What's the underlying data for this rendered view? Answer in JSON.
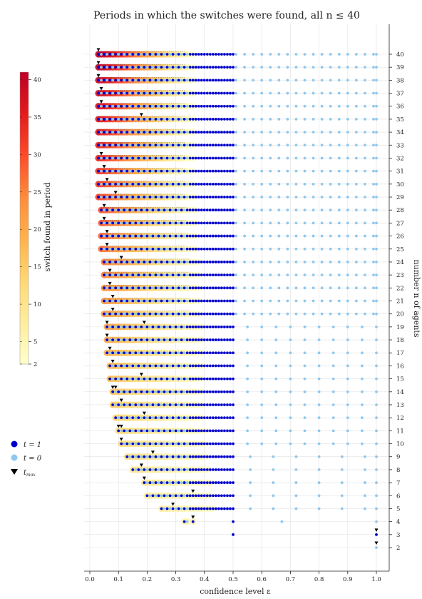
{
  "chart_data": {
    "type": "scatter",
    "title": "Periods in which the switches were found, all n ≤ 40",
    "xlabel": "confidence level ε",
    "ylabel": "number n of agents",
    "xlim": [
      0.0,
      1.0
    ],
    "ylim": [
      2,
      40
    ],
    "xticks": [
      "0.0",
      "0.1",
      "0.2",
      "0.3",
      "0.4",
      "0.5",
      "0.6",
      "0.7",
      "0.8",
      "0.9",
      "1.0"
    ],
    "yticks": [
      "2",
      "3",
      "4",
      "5",
      "6",
      "7",
      "8",
      "9",
      "10",
      "11",
      "12",
      "13",
      "14",
      "15",
      "16",
      "17",
      "18",
      "19",
      "20",
      "21",
      "22",
      "23",
      "24",
      "25",
      "26",
      "27",
      "28",
      "29",
      "30",
      "31",
      "32",
      "33",
      "34",
      "35",
      "36",
      "37",
      "38",
      "39",
      "40"
    ],
    "grid": true,
    "colorbar": {
      "label": "switch found in period",
      "range": [
        2,
        41
      ],
      "ticks": [
        "2",
        "5",
        "10",
        "15",
        "20",
        "25",
        "30",
        "35",
        "40"
      ],
      "colors": [
        "#ffffcc",
        "#ffeda0",
        "#fed976",
        "#feb24c",
        "#fd8d3c",
        "#fc4e2a",
        "#e31a1c",
        "#bd0026"
      ]
    },
    "legend": {
      "position": "left",
      "entries": [
        {
          "label": "t = 1",
          "marker": "circle",
          "color": "#0000cc"
        },
        {
          "label": "t = 0",
          "marker": "circle",
          "color": "#8ec8f0"
        },
        {
          "label": "t",
          "subscript": "max",
          "marker": "triangle-down",
          "color": "#000000"
        }
      ]
    },
    "rows": [
      {
        "n": 40,
        "eps_min": 0.03,
        "eps_t1_end": 0.49,
        "tmax": [
          0.03
        ]
      },
      {
        "n": 39,
        "eps_min": 0.03,
        "eps_t1_end": 0.49,
        "tmax": [
          0.03
        ]
      },
      {
        "n": 38,
        "eps_min": 0.03,
        "eps_t1_end": 0.49,
        "tmax": [
          0.03
        ]
      },
      {
        "n": 37,
        "eps_min": 0.03,
        "eps_t1_end": 0.49,
        "tmax": [
          0.04
        ]
      },
      {
        "n": 36,
        "eps_min": 0.03,
        "eps_t1_end": 0.49,
        "tmax": [
          0.04
        ]
      },
      {
        "n": 35,
        "eps_min": 0.03,
        "eps_t1_end": 0.49,
        "tmax": [
          0.18
        ]
      },
      {
        "n": 34,
        "eps_min": 0.03,
        "eps_t1_end": 0.49,
        "tmax": []
      },
      {
        "n": 33,
        "eps_min": 0.03,
        "eps_t1_end": 0.49,
        "tmax": []
      },
      {
        "n": 32,
        "eps_min": 0.03,
        "eps_t1_end": 0.49,
        "tmax": [
          0.04
        ]
      },
      {
        "n": 31,
        "eps_min": 0.03,
        "eps_t1_end": 0.49,
        "tmax": [
          0.05
        ]
      },
      {
        "n": 30,
        "eps_min": 0.03,
        "eps_t1_end": 0.49,
        "tmax": [
          0.06
        ]
      },
      {
        "n": 29,
        "eps_min": 0.03,
        "eps_t1_end": 0.49,
        "tmax": [
          0.09
        ]
      },
      {
        "n": 28,
        "eps_min": 0.04,
        "eps_t1_end": 0.49,
        "tmax": [
          0.05
        ]
      },
      {
        "n": 27,
        "eps_min": 0.04,
        "eps_t1_end": 0.49,
        "tmax": [
          0.05
        ]
      },
      {
        "n": 26,
        "eps_min": 0.04,
        "eps_t1_end": 0.49,
        "tmax": [
          0.06
        ]
      },
      {
        "n": 25,
        "eps_min": 0.04,
        "eps_t1_end": 0.49,
        "tmax": [
          0.06
        ]
      },
      {
        "n": 24,
        "eps_min": 0.05,
        "eps_t1_end": 0.49,
        "tmax": [
          0.11
        ]
      },
      {
        "n": 23,
        "eps_min": 0.05,
        "eps_t1_end": 0.49,
        "tmax": [
          0.07
        ]
      },
      {
        "n": 22,
        "eps_min": 0.05,
        "eps_t1_end": 0.49,
        "tmax": [
          0.07
        ]
      },
      {
        "n": 21,
        "eps_min": 0.05,
        "eps_t1_end": 0.49,
        "tmax": [
          0.08
        ]
      },
      {
        "n": 20,
        "eps_min": 0.05,
        "eps_t1_end": 0.49,
        "tmax": [
          0.08
        ]
      },
      {
        "n": 19,
        "eps_min": 0.06,
        "eps_t1_end": 0.49,
        "tmax": [
          0.06,
          0.19
        ]
      },
      {
        "n": 18,
        "eps_min": 0.06,
        "eps_t1_end": 0.49,
        "tmax": [
          0.06
        ]
      },
      {
        "n": 17,
        "eps_min": 0.06,
        "eps_t1_end": 0.49,
        "tmax": [
          0.07
        ]
      },
      {
        "n": 16,
        "eps_min": 0.07,
        "eps_t1_end": 0.49,
        "tmax": [
          0.08
        ]
      },
      {
        "n": 15,
        "eps_min": 0.07,
        "eps_t1_end": 0.49,
        "tmax": [
          0.18
        ]
      },
      {
        "n": 14,
        "eps_min": 0.08,
        "eps_t1_end": 0.49,
        "tmax": [
          0.08,
          0.09
        ]
      },
      {
        "n": 13,
        "eps_min": 0.08,
        "eps_t1_end": 0.49,
        "tmax": [
          0.11
        ]
      },
      {
        "n": 12,
        "eps_min": 0.09,
        "eps_t1_end": 0.49,
        "tmax": [
          0.19
        ]
      },
      {
        "n": 11,
        "eps_min": 0.1,
        "eps_t1_end": 0.49,
        "tmax": [
          0.1,
          0.11
        ]
      },
      {
        "n": 10,
        "eps_min": 0.11,
        "eps_t1_end": 0.49,
        "tmax": [
          0.11
        ]
      },
      {
        "n": 9,
        "eps_min": 0.13,
        "eps_t1_end": 0.49,
        "tmax": [
          0.22
        ]
      },
      {
        "n": 8,
        "eps_min": 0.15,
        "eps_t1_end": 0.49,
        "tmax": [
          0.18
        ]
      },
      {
        "n": 7,
        "eps_min": 0.19,
        "eps_t1_end": 0.49,
        "tmax": [
          0.19
        ]
      },
      {
        "n": 6,
        "eps_min": 0.2,
        "eps_t1_end": 0.49,
        "tmax": [
          0.36
        ]
      },
      {
        "n": 5,
        "eps_min": 0.25,
        "eps_t1_end": 0.49,
        "tmax": [
          0.29
        ]
      },
      {
        "n": 4,
        "eps_min": 0.33,
        "eps_t1_end": 0.49,
        "tmax": [
          0.36
        ]
      },
      {
        "n": 3,
        "eps_min": 0.5,
        "eps_t1_end": 1.0,
        "tmax": [
          1.0
        ]
      },
      {
        "n": 2,
        "eps_min": 1.0,
        "eps_t1_end": 0.99,
        "tmax": [
          1.0
        ]
      }
    ]
  }
}
